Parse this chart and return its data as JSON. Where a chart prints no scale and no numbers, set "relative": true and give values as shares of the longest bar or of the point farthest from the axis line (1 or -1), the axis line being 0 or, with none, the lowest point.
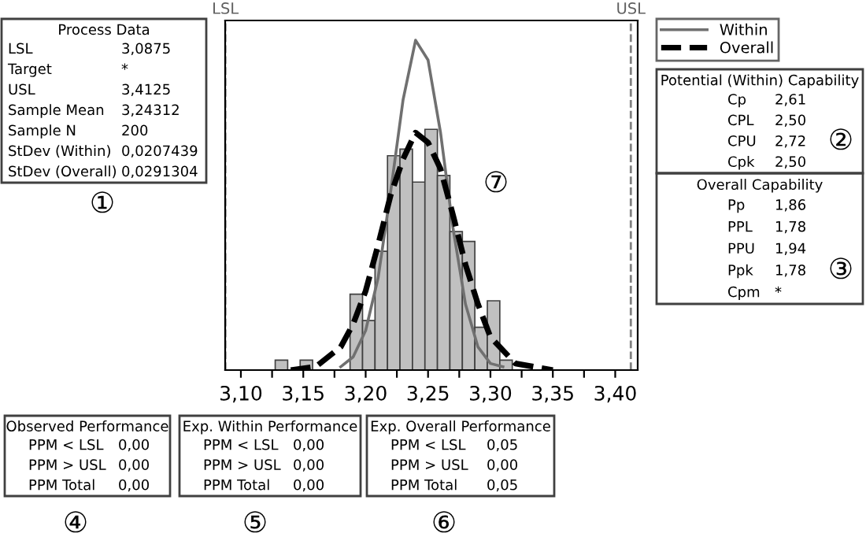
{
  "chart_data": {
    "type": "histogram",
    "relative": true,
    "bins": [
      3.1275,
      3.1375,
      3.1475,
      3.1575,
      3.1675,
      3.1775,
      3.1875,
      3.1975,
      3.2075,
      3.2175,
      3.2275,
      3.2375,
      3.2475,
      3.2575,
      3.2675,
      3.2775,
      3.2875,
      3.2975,
      3.3075,
      3.3175
    ],
    "values": [
      0.03,
      0,
      0.03,
      0,
      0,
      0,
      0.23,
      0.15,
      0.36,
      0.65,
      0.67,
      0.57,
      0.73,
      0.59,
      0.42,
      0.39,
      0.13,
      0.21,
      0.03
    ],
    "color": "#c0c0c0",
    "series": [
      {
        "name": "Within",
        "type": "line",
        "line_style": "solid",
        "color": "#707070",
        "x": [
          3.18,
          3.19,
          3.2,
          3.21,
          3.22,
          3.23,
          3.24,
          3.25,
          3.26,
          3.27,
          3.28,
          3.29,
          3.3,
          3.31
        ],
        "values": [
          0.01,
          0.04,
          0.12,
          0.28,
          0.54,
          0.82,
          1.0,
          0.94,
          0.72,
          0.43,
          0.2,
          0.07,
          0.02,
          0.01
        ]
      },
      {
        "name": "Overall",
        "type": "line",
        "line_style": "dashed",
        "color": "#000000",
        "x": [
          3.14,
          3.16,
          3.18,
          3.19,
          3.2,
          3.21,
          3.22,
          3.23,
          3.24,
          3.25,
          3.26,
          3.27,
          3.28,
          3.29,
          3.3,
          3.32,
          3.35
        ],
        "values": [
          0.0,
          0.01,
          0.07,
          0.14,
          0.24,
          0.38,
          0.53,
          0.64,
          0.72,
          0.69,
          0.61,
          0.47,
          0.32,
          0.2,
          0.1,
          0.02,
          0.0
        ]
      }
    ],
    "xlim": [
      3.0874,
      3.418
    ],
    "xticks": [
      {
        "value": 3.1,
        "label": "3,10"
      },
      {
        "value": 3.125,
        "label": null
      },
      {
        "value": 3.15,
        "label": "3,15"
      },
      {
        "value": 3.175,
        "label": null
      },
      {
        "value": 3.2,
        "label": "3,20"
      },
      {
        "value": 3.225,
        "label": null
      },
      {
        "value": 3.25,
        "label": "3,25"
      },
      {
        "value": 3.275,
        "label": null
      },
      {
        "value": 3.3,
        "label": "3,30"
      },
      {
        "value": 3.325,
        "label": null
      },
      {
        "value": 3.35,
        "label": "3,35"
      },
      {
        "value": 3.375,
        "label": null
      },
      {
        "value": 3.4,
        "label": "3,40"
      }
    ],
    "ref_lines": [
      {
        "axis": "x",
        "value": 3.0875,
        "label": "LSL",
        "color": "#808080",
        "line_style": "dashed"
      },
      {
        "axis": "x",
        "value": 3.4125,
        "label": "USL",
        "color": "#808080",
        "line_style": "dashed"
      }
    ],
    "grid": false,
    "legend": "right",
    "annotations": [
      "Process Data",
      "LSL 3,0875",
      "Target *",
      "USL 3,4125",
      "Sample Mean 3,24312",
      "Sample N 200",
      "StDev (Within) 0,0207439",
      "StDev (Overall) 0,0291304",
      "①",
      "Potential (Within) Capability",
      "Cp 2,61",
      "CPL 2,50",
      "CPU 2,72",
      "Cpk 2,50",
      "②",
      "Overall Capability",
      "Pp 1,86",
      "PPL 1,78",
      "PPU 1,94",
      "Ppk 1,78",
      "Cpm *",
      "③",
      "Observed Performance",
      "PPM < LSL 0,00",
      "PPM > USL 0,00",
      "PPM Total 0,00",
      "④",
      "Exp. Within Performance",
      "PPM < LSL 0,00",
      "PPM > USL 0,00",
      "PPM Total 0,00",
      "⑤",
      "Exp. Overall Performance",
      "PPM < LSL 0,05",
      "PPM > USL 0,00",
      "PPM Total 0,05",
      "⑥",
      "⑦"
    ]
  }
}
